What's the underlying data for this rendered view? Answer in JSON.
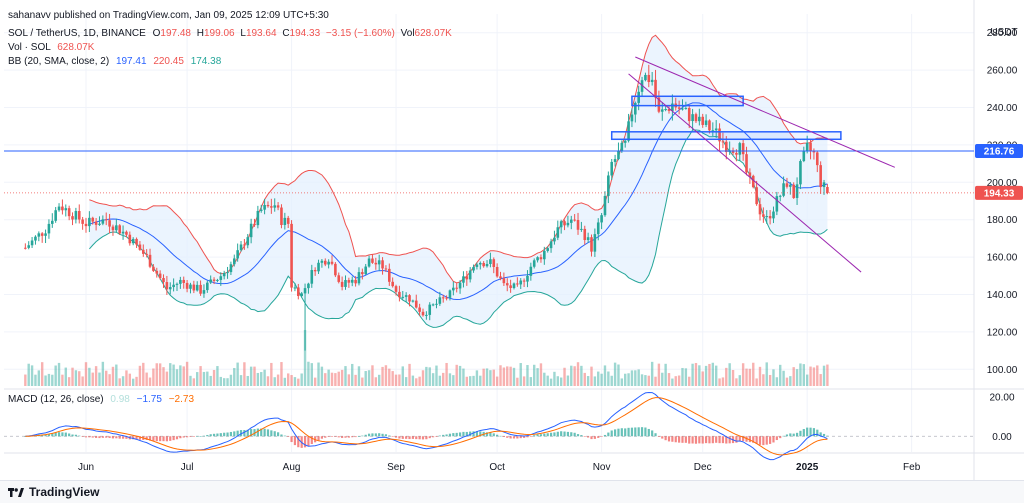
{
  "header": {
    "publisher": "sahanavv published on TradingView.com, Jan 09, 2025 12:09 UTC+5:30",
    "symbol": "SOL / TetherUS, 1D, BINANCE",
    "open_label": "O",
    "open": "197.48",
    "high_label": "H",
    "high": "199.06",
    "low_label": "L",
    "low": "193.64",
    "close_label": "C",
    "close": "194.33",
    "change": "−3.15 (−1.60%)",
    "vol_label": "Vol",
    "vol": "628.07K",
    "vol_line_label": "Vol · SOL",
    "vol_line_value": "628.07K",
    "bb_label": "BB (20, SMA, close, 2)",
    "bb_basis": "197.41",
    "bb_upper": "220.45",
    "bb_lower": "174.38",
    "macd_label": "MACD (12, 26, close)",
    "macd_hist": "0.98",
    "macd_line": "−1.75",
    "macd_signal": "−2.73"
  },
  "currency": "USDT",
  "price_tags": {
    "hline": "216.76",
    "last": "194.33"
  },
  "footer": {
    "brand": "TradingView"
  },
  "colors": {
    "up": "#26a69a",
    "down": "#ef5350",
    "bb_upper": "#ef5350",
    "bb_lower": "#26a69a",
    "bb_basis": "#2962ff",
    "bb_fill": "#e3effd",
    "macd": "#2962ff",
    "signal": "#ff6d00",
    "hline": "#2962ff",
    "zone": "#2962ff",
    "trend": "#9c27b0"
  },
  "chart_data": {
    "type": "candlestick",
    "price_axis": {
      "ticks": [
        100,
        120,
        140,
        160,
        180,
        200,
        220,
        240,
        260,
        280
      ],
      "min": 90,
      "max": 290
    },
    "macd_axis": {
      "ticks": [
        20,
        0
      ],
      "tick_labels": [
        "20.00",
        "0.00"
      ]
    },
    "time_axis": [
      {
        "label": "Jun",
        "day": 0
      },
      {
        "label": "Jul",
        "day": 30
      },
      {
        "label": "Aug",
        "day": 61
      },
      {
        "label": "Sep",
        "day": 92
      },
      {
        "label": "Oct",
        "day": 122
      },
      {
        "label": "Nov",
        "day": 153
      },
      {
        "label": "Dec",
        "day": 183
      },
      {
        "label": "2025",
        "day": 214
      },
      {
        "label": "Feb",
        "day": 245
      }
    ],
    "first_candle_day": -18,
    "candle_count": 240,
    "price_path_approx": [
      [
        -18,
        165
      ],
      [
        -12,
        175
      ],
      [
        -8,
        188
      ],
      [
        -4,
        183
      ],
      [
        0,
        178
      ],
      [
        6,
        180
      ],
      [
        12,
        172
      ],
      [
        18,
        160
      ],
      [
        24,
        143
      ],
      [
        28,
        147
      ],
      [
        34,
        142
      ],
      [
        40,
        150
      ],
      [
        44,
        158
      ],
      [
        48,
        172
      ],
      [
        52,
        185
      ],
      [
        56,
        188
      ],
      [
        58,
        180
      ],
      [
        60,
        178
      ],
      [
        61,
        145
      ],
      [
        64,
        140
      ],
      [
        68,
        155
      ],
      [
        72,
        160
      ],
      [
        76,
        145
      ],
      [
        80,
        148
      ],
      [
        84,
        158
      ],
      [
        88,
        155
      ],
      [
        92,
        142
      ],
      [
        96,
        138
      ],
      [
        100,
        130
      ],
      [
        104,
        135
      ],
      [
        108,
        140
      ],
      [
        112,
        148
      ],
      [
        116,
        158
      ],
      [
        120,
        157
      ],
      [
        124,
        145
      ],
      [
        128,
        143
      ],
      [
        132,
        155
      ],
      [
        136,
        163
      ],
      [
        140,
        175
      ],
      [
        144,
        180
      ],
      [
        148,
        172
      ],
      [
        150,
        165
      ],
      [
        153,
        182
      ],
      [
        156,
        210
      ],
      [
        160,
        220
      ],
      [
        162,
        238
      ],
      [
        165,
        257
      ],
      [
        168,
        255
      ],
      [
        170,
        236
      ],
      [
        174,
        242
      ],
      [
        178,
        237
      ],
      [
        182,
        232
      ],
      [
        186,
        228
      ],
      [
        190,
        220
      ],
      [
        194,
        218
      ],
      [
        196,
        205
      ],
      [
        198,
        195
      ],
      [
        200,
        185
      ],
      [
        202,
        180
      ],
      [
        205,
        190
      ],
      [
        208,
        200
      ],
      [
        210,
        193
      ],
      [
        212,
        208
      ],
      [
        214,
        218
      ],
      [
        216,
        215
      ],
      [
        218,
        200
      ],
      [
        220,
        194.33
      ]
    ],
    "bollinger": {
      "basis": "197.41",
      "upper": "220.45",
      "lower": "174.38"
    },
    "horizontal_line": 216.76,
    "resistance_zones": [
      {
        "from_day": 162,
        "to_day": 195,
        "low": 241,
        "high": 246
      },
      {
        "from_day": 156,
        "to_day": 224,
        "low": 223,
        "high": 227
      }
    ],
    "trendlines": [
      {
        "from": [
          163,
          267
        ],
        "to": [
          240,
          208
        ]
      },
      {
        "from": [
          161,
          258
        ],
        "to": [
          230,
          152
        ]
      }
    ],
    "macd_scale": {
      "min": -8,
      "max": 24
    }
  }
}
